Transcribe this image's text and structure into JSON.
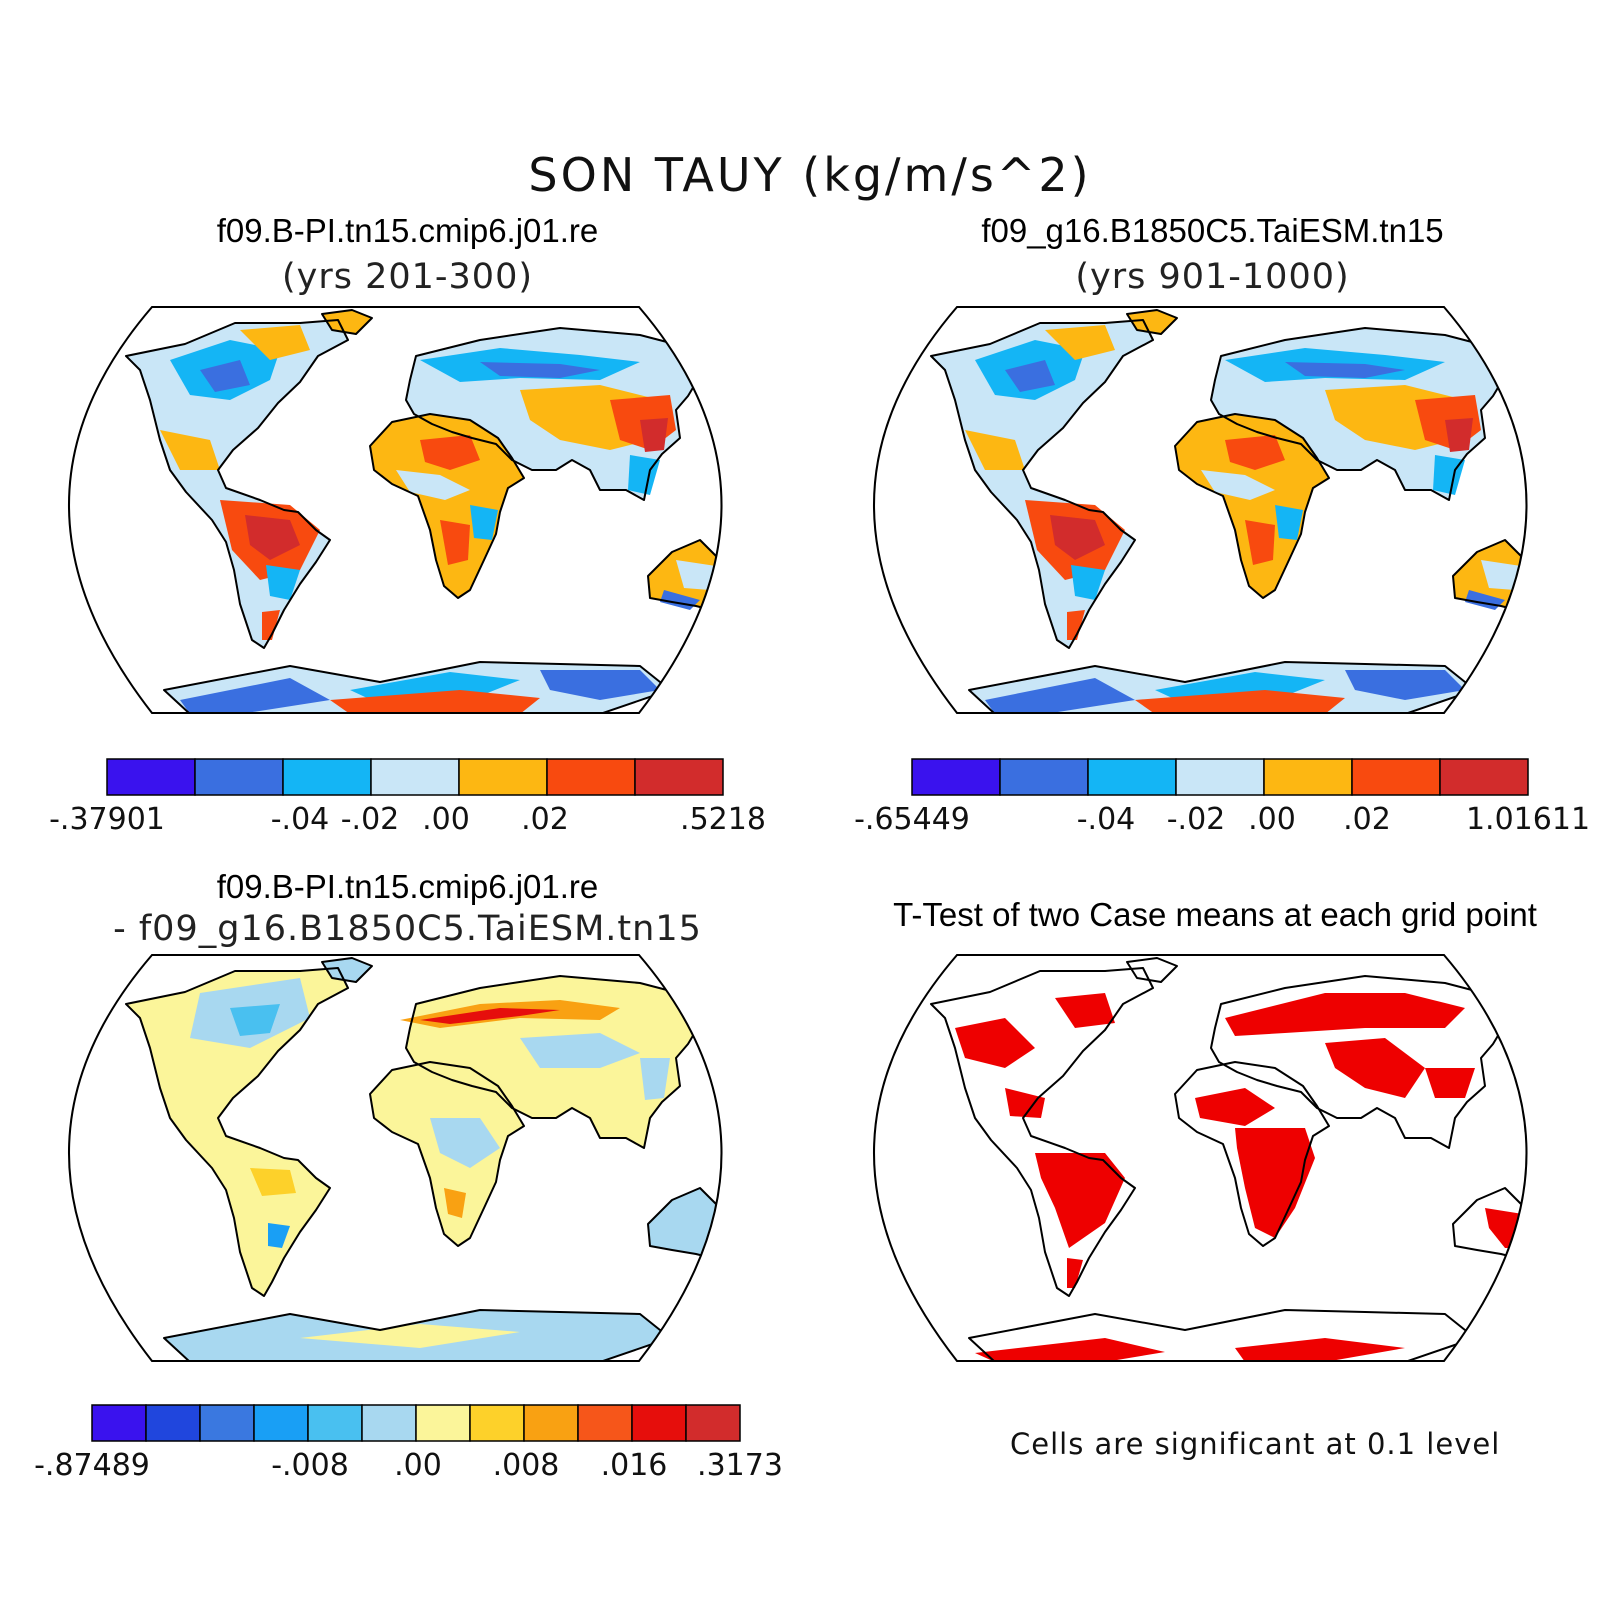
{
  "title": "SON  TAUY (kg/m/s^2)",
  "panels": [
    {
      "id": "p1",
      "title": "f09.B-PI.tn15.cmip6.j01.re",
      "subtitle": "(yrs 201-300)"
    },
    {
      "id": "p2",
      "title": "f09_g16.B1850C5.TaiESM.tn15",
      "subtitle": "(yrs 901-1000)"
    },
    {
      "id": "p3",
      "title": "f09.B-PI.tn15.cmip6.j01.re",
      "subtitle": "- f09_g16.B1850C5.TaiESM.tn15"
    },
    {
      "id": "p4",
      "title": "T-Test of two Case means at each grid point",
      "subtitle": ""
    }
  ],
  "colorbars": {
    "cb1": {
      "colors": [
        "#3a12ee",
        "#3a6fe0",
        "#14b5f5",
        "#c9e6f7",
        "#fdb712",
        "#f84a0f",
        "#d22c2c"
      ],
      "labels": [
        "-.37901",
        "-.04",
        "-.02",
        ".00",
        ".02",
        ".5218"
      ]
    },
    "cb2": {
      "colors": [
        "#3a12ee",
        "#3a6fe0",
        "#14b5f5",
        "#c9e6f7",
        "#fdb712",
        "#f84a0f",
        "#d22c2c"
      ],
      "labels": [
        "-.65449",
        "-.04",
        "-.02",
        ".00",
        ".02",
        "1.01611"
      ]
    },
    "cb3": {
      "colors": [
        "#3a12ee",
        "#2046dd",
        "#3a78e0",
        "#199ff5",
        "#49c0f0",
        "#a8d8f0",
        "#fbf59a",
        "#fdd12a",
        "#f9a112",
        "#f6561a",
        "#e60e0c",
        "#d22c2c"
      ],
      "labels": [
        "-.87489",
        "-.008",
        ".00",
        ".008",
        ".016",
        ".3173"
      ]
    }
  },
  "significance_note": "Cells are significant at 0.1 level",
  "significance_color": "#ee0000"
}
